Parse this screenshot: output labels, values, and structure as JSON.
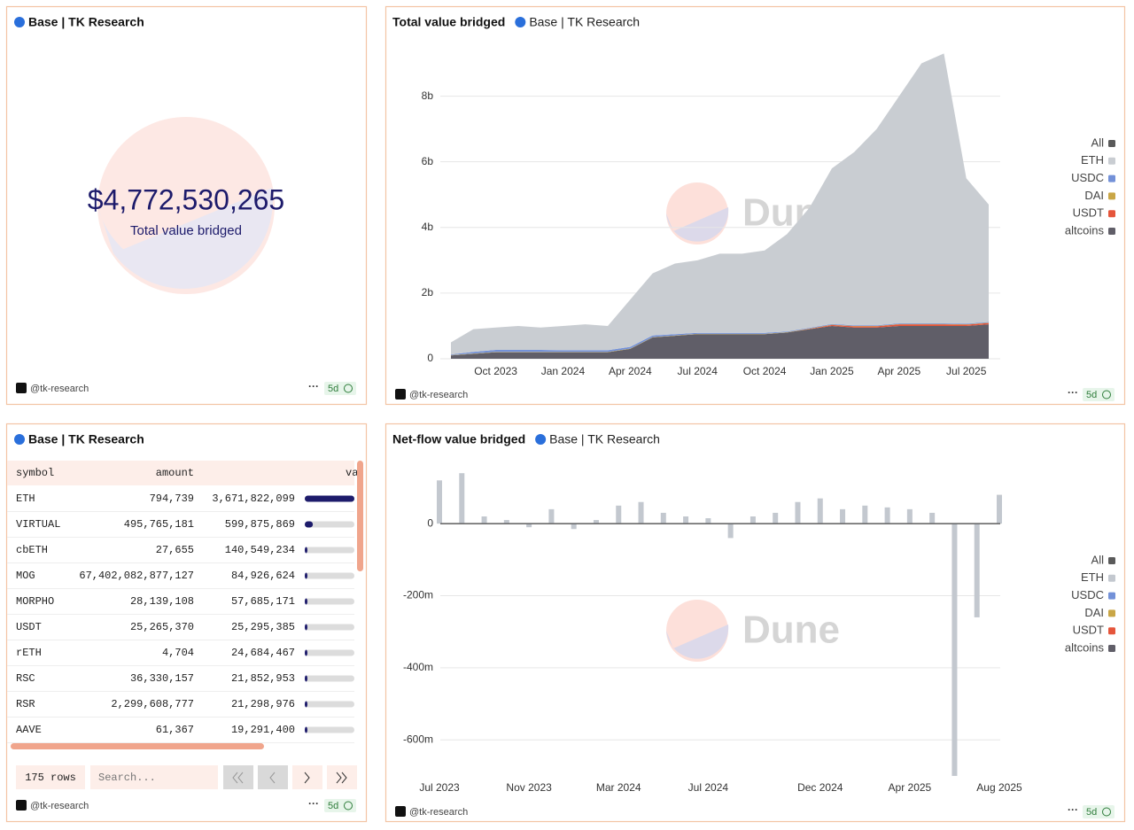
{
  "counter": {
    "title": "Base | TK Research",
    "value": "$4,772,530,265",
    "label": "Total value bridged",
    "author": "@tk-research",
    "age": "5d"
  },
  "table": {
    "title": "Base | TK Research",
    "columns": [
      "symbol",
      "amount",
      "va"
    ],
    "rows": [
      [
        "ETH",
        "794,739",
        "3,671,822,099"
      ],
      [
        "VIRTUAL",
        "495,765,181",
        "599,875,869"
      ],
      [
        "cbETH",
        "27,655",
        "140,549,234"
      ],
      [
        "MOG",
        "67,402,082,877,127",
        "84,926,624"
      ],
      [
        "MORPHO",
        "28,139,108",
        "57,685,171"
      ],
      [
        "USDT",
        "25,265,370",
        "25,295,385"
      ],
      [
        "rETH",
        "4,704",
        "24,684,467"
      ],
      [
        "RSC",
        "36,330,157",
        "21,852,953"
      ],
      [
        "RSR",
        "2,299,608,777",
        "21,298,976"
      ],
      [
        "AAVE",
        "61,367",
        "19,291,400"
      ]
    ],
    "row_count": "175 rows",
    "search_placeholder": "Search...",
    "author": "@tk-research",
    "age": "5d"
  },
  "chart_data": [
    {
      "type": "area",
      "title": "Total value bridged",
      "subtitle": "Base | TK Research",
      "watermark": "Dune",
      "x": [
        "Aug 2023",
        "Sep 2023",
        "Oct 2023",
        "Nov 2023",
        "Dec 2023",
        "Jan 2024",
        "Feb 2024",
        "Mar 2024",
        "Apr 2024",
        "May 2024",
        "Jun 2024",
        "Jul 2024",
        "Aug 2024",
        "Sep 2024",
        "Oct 2024",
        "Nov 2024",
        "Dec 2024",
        "Jan 2025",
        "Feb 2025",
        "Mar 2025",
        "Apr 2025",
        "May 2025",
        "Jun 2025",
        "Jul 2025",
        "Aug 2025"
      ],
      "xticks": [
        "Oct 2023",
        "Jan 2024",
        "Apr 2024",
        "Jul 2024",
        "Oct 2024",
        "Jan 2025",
        "Apr 2025",
        "Jul 2025"
      ],
      "ylim": [
        0,
        9.5
      ],
      "yticks": [
        0,
        {
          "value": 2,
          "label": "2b"
        },
        {
          "value": 4,
          "label": "4b"
        },
        {
          "value": 6,
          "label": "6b"
        },
        {
          "value": 8,
          "label": "8b"
        }
      ],
      "grid": true,
      "stacked": true,
      "legend": "right",
      "series": [
        {
          "name": "All",
          "color": "#5a5a5a"
        },
        {
          "name": "ETH",
          "color": "#c9cdd2",
          "values": [
            0.37,
            0.69,
            0.68,
            0.73,
            0.68,
            0.74,
            0.79,
            0.74,
            1.44,
            1.89,
            2.15,
            2.21,
            2.41,
            2.41,
            2.51,
            2.97,
            3.66,
            4.74,
            5.28,
            5.98,
            6.92,
            7.92,
            8.22,
            4.43,
            3.58
          ]
        },
        {
          "name": "USDC",
          "color": "#7391d8",
          "values": [
            0.02,
            0.05,
            0.06,
            0.06,
            0.06,
            0.05,
            0.05,
            0.05,
            0.05,
            0.05,
            0.04,
            0.03,
            0.03,
            0.03,
            0.03,
            0.02,
            0.02,
            0.02,
            0.02,
            0.02,
            0.02,
            0.02,
            0.02,
            0.02,
            0.02
          ]
        },
        {
          "name": "DAI",
          "color": "#c9a646",
          "values": [
            0.01,
            0.01,
            0.01,
            0.01,
            0.01,
            0.01,
            0.01,
            0.01,
            0.01,
            0.01,
            0.01,
            0.01,
            0.01,
            0.01,
            0.01,
            0.01,
            0.01,
            0.01,
            0.01,
            0.01,
            0.01,
            0.01,
            0.01,
            0.01,
            0.01
          ]
        },
        {
          "name": "USDT",
          "color": "#e5553b",
          "values": [
            0,
            0,
            0,
            0,
            0,
            0,
            0,
            0,
            0,
            0,
            0,
            0,
            0,
            0,
            0,
            0,
            0.01,
            0.03,
            0.04,
            0.04,
            0.05,
            0.05,
            0.05,
            0.04,
            0.04
          ]
        },
        {
          "name": "altcoins",
          "color": "#605e68",
          "values": [
            0.1,
            0.15,
            0.2,
            0.2,
            0.2,
            0.2,
            0.2,
            0.2,
            0.3,
            0.65,
            0.7,
            0.75,
            0.75,
            0.75,
            0.75,
            0.8,
            0.9,
            1.0,
            0.95,
            0.95,
            1.0,
            1.0,
            1.0,
            1.0,
            1.05
          ]
        }
      ],
      "author": "@tk-research",
      "age": "5d"
    },
    {
      "type": "bar",
      "title": "Net-flow value bridged",
      "subtitle": "Base | TK Research",
      "watermark": "Dune",
      "x": [
        "Jul 2023",
        "Aug 2023",
        "Sep 2023",
        "Oct 2023",
        "Nov 2023",
        "Dec 2023",
        "Jan 2024",
        "Feb 2024",
        "Mar 2024",
        "Apr 2024",
        "May 2024",
        "Jun 2024",
        "Jul 2024",
        "Aug 2024",
        "Sep 2024",
        "Oct 2024",
        "Nov 2024",
        "Dec 2024",
        "Jan 2025",
        "Feb 2025",
        "Mar 2025",
        "Apr 2025",
        "May 2025",
        "Jun 2025",
        "Jul 2025",
        "Aug 2025"
      ],
      "xticks": [
        "Jul 2023",
        "Nov 2023",
        "Mar 2024",
        "Jul 2024",
        "Dec 2024",
        "Apr 2025",
        "Aug 2025"
      ],
      "ylim": [
        -710,
        165
      ],
      "yticks": [
        0,
        {
          "value": -200,
          "label": "-200m"
        },
        {
          "value": -400,
          "label": "-400m"
        },
        {
          "value": -600,
          "label": "-600m"
        }
      ],
      "grid": true,
      "legend": "right",
      "series": [
        {
          "name": "All",
          "color": "#5a5a5a"
        },
        {
          "name": "ETH",
          "color": "#c3c8cf",
          "values": [
            120,
            140,
            20,
            10,
            -10,
            40,
            -15,
            10,
            50,
            60,
            30,
            20,
            15,
            -40,
            20,
            30,
            60,
            70,
            40,
            50,
            45,
            40,
            30,
            -700,
            -260,
            80
          ]
        },
        {
          "name": "USDC",
          "color": "#7391d8"
        },
        {
          "name": "DAI",
          "color": "#c9a646"
        },
        {
          "name": "USDT",
          "color": "#e5553b"
        },
        {
          "name": "altcoins",
          "color": "#605e68"
        }
      ],
      "author": "@tk-research",
      "age": "5d"
    }
  ]
}
